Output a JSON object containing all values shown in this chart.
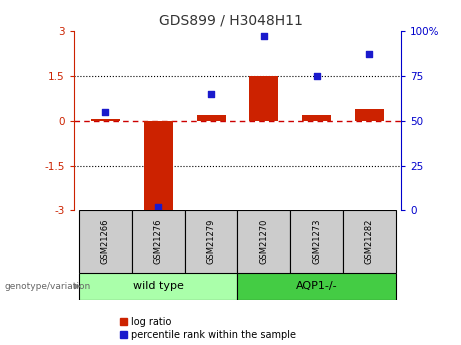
{
  "title": "GDS899 / H3048H11",
  "samples": [
    "GSM21266",
    "GSM21276",
    "GSM21279",
    "GSM21270",
    "GSM21273",
    "GSM21282"
  ],
  "log_ratio": [
    0.05,
    -3.0,
    0.2,
    1.5,
    0.2,
    0.4
  ],
  "percentile_rank": [
    55,
    2,
    65,
    97,
    75,
    87
  ],
  "ylim_left": [
    -3,
    3
  ],
  "ylim_right": [
    0,
    100
  ],
  "yticks_left": [
    -3,
    -1.5,
    0,
    1.5,
    3
  ],
  "ytick_labels_left": [
    "-3",
    "-1.5",
    "0",
    "1.5",
    "3"
  ],
  "yticks_right": [
    0,
    25,
    50,
    75,
    100
  ],
  "ytick_labels_right": [
    "0",
    "25",
    "50",
    "75",
    "100%"
  ],
  "hlines_dotted": [
    1.5,
    -1.5
  ],
  "bar_color": "#cc2200",
  "scatter_color": "#1a1acc",
  "zero_line_color": "#cc0000",
  "dotted_line_color": "#000000",
  "groups": [
    {
      "label": "wild type",
      "indices": [
        0,
        1,
        2
      ],
      "color": "#aaffaa"
    },
    {
      "label": "AQP1-/-",
      "indices": [
        3,
        4,
        5
      ],
      "color": "#44cc44"
    }
  ],
  "genotype_label": "genotype/variation",
  "legend_items": [
    {
      "label": "log ratio",
      "color": "#cc2200"
    },
    {
      "label": "percentile rank within the sample",
      "color": "#1a1acc"
    }
  ],
  "sample_box_color": "#cccccc",
  "background_color": "#ffffff",
  "right_axis_color": "#0000cc",
  "left_axis_color": "#cc2200"
}
